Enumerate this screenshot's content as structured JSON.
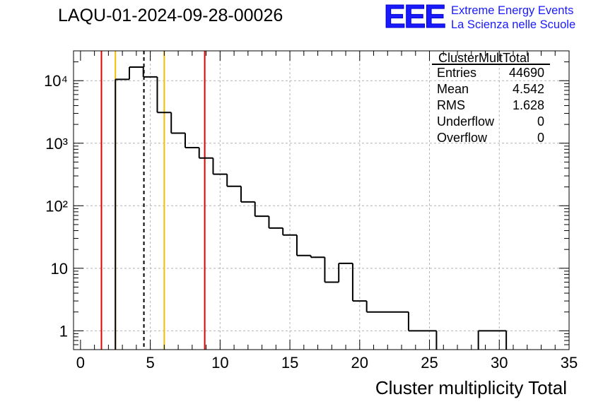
{
  "chart_data": {
    "type": "histogram",
    "title": "LAQU-01-2024-09-28-00026",
    "xlabel": "Cluster multiplicity Total",
    "ylabel": "",
    "y_scale": "log",
    "xlim": [
      -0.5,
      35.0
    ],
    "ylim": [
      0.5,
      30000
    ],
    "grid": true,
    "x_ticks": [
      "0",
      "5",
      "10",
      "15",
      "20",
      "25",
      "30",
      "35"
    ],
    "x_tick_values": [
      0,
      5,
      10,
      15,
      20,
      25,
      30,
      35
    ],
    "y_ticks": [
      "1",
      "10",
      "10²",
      "10³",
      "10⁴"
    ],
    "y_tick_values": [
      1,
      10,
      100,
      1000,
      10000
    ],
    "bins": [
      {
        "x0": 2.5,
        "x1": 3.5,
        "value": 10500
      },
      {
        "x0": 3.5,
        "x1": 4.5,
        "value": 16500
      },
      {
        "x0": 4.5,
        "x1": 5.5,
        "value": 11500
      },
      {
        "x0": 5.5,
        "x1": 6.5,
        "value": 3100
      },
      {
        "x0": 6.5,
        "x1": 7.5,
        "value": 1450
      },
      {
        "x0": 7.5,
        "x1": 8.5,
        "value": 850
      },
      {
        "x0": 8.5,
        "x1": 9.5,
        "value": 580
      },
      {
        "x0": 9.5,
        "x1": 10.5,
        "value": 320
      },
      {
        "x0": 10.5,
        "x1": 11.5,
        "value": 205
      },
      {
        "x0": 11.5,
        "x1": 12.5,
        "value": 115
      },
      {
        "x0": 12.5,
        "x1": 13.5,
        "value": 68
      },
      {
        "x0": 13.5,
        "x1": 14.5,
        "value": 44
      },
      {
        "x0": 14.5,
        "x1": 15.5,
        "value": 34
      },
      {
        "x0": 15.5,
        "x1": 16.5,
        "value": 16
      },
      {
        "x0": 16.5,
        "x1": 17.5,
        "value": 15
      },
      {
        "x0": 17.5,
        "x1": 18.5,
        "value": 6
      },
      {
        "x0": 18.5,
        "x1": 19.5,
        "value": 12
      },
      {
        "x0": 19.5,
        "x1": 20.5,
        "value": 3
      },
      {
        "x0": 20.5,
        "x1": 23.5,
        "value": 2
      },
      {
        "x0": 23.5,
        "x1": 25.5,
        "value": 1
      },
      {
        "x0": 28.5,
        "x1": 30.5,
        "value": 1
      }
    ],
    "vertical_lines": [
      {
        "x": 1.5,
        "color": "#e00000",
        "style": "solid"
      },
      {
        "x": 2.5,
        "color": "#f0c000",
        "style": "solid"
      },
      {
        "x": 4.542,
        "color": "#000000",
        "style": "dashed"
      },
      {
        "x": 6.0,
        "color": "#f0c000",
        "style": "solid"
      },
      {
        "x": 8.9,
        "color": "#e00000",
        "style": "solid"
      }
    ],
    "stats_box": {
      "title": "ClusterMultTotal",
      "rows": [
        {
          "label": "Entries",
          "value": "44690"
        },
        {
          "label": "Mean",
          "value": "4.542"
        },
        {
          "label": "RMS",
          "value": "1.628"
        },
        {
          "label": "Underflow",
          "value": "0"
        },
        {
          "label": "Overflow",
          "value": "0"
        }
      ]
    }
  },
  "logo": {
    "mark": "EEE",
    "line1": "Extreme Energy Events",
    "line2": "La Scienza nelle Scuole"
  },
  "colors": {
    "grid": "#b4b4b4",
    "histogram": "#000000",
    "logo": "#1a1aff"
  }
}
